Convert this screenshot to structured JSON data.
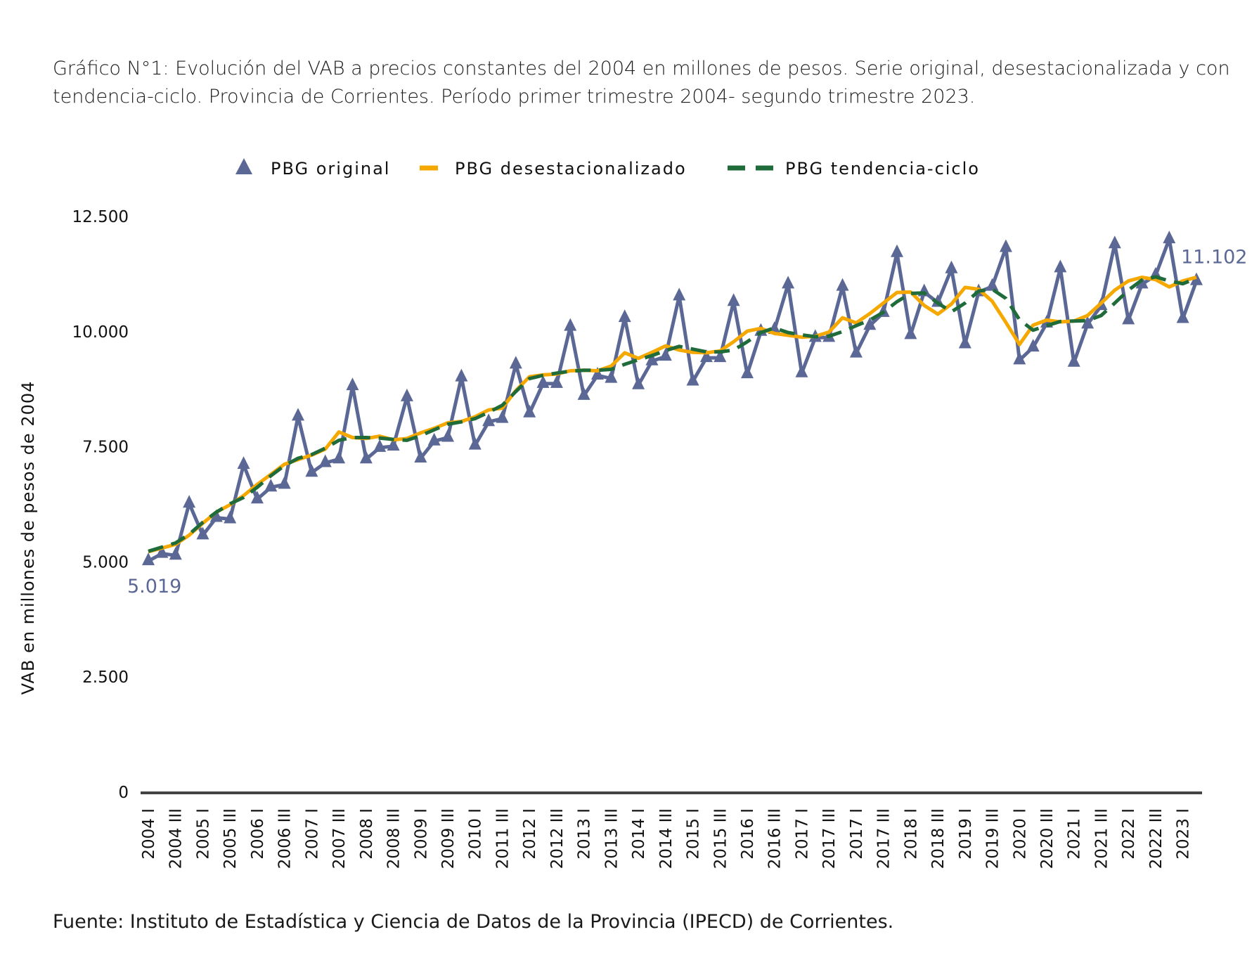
{
  "title": "Gráfico N°1: Evolución del VAB a precios constantes del 2004 en millones de pesos. Serie original, desestacionalizada y con tendencia-ciclo. Provincia de Corrientes. Período primer trimestre 2004- segundo trimestre 2023.",
  "source": "Fuente: Instituto de Estadística y Ciencia de Datos de la Provincia (IPECD) de Corrientes.",
  "chart_data": {
    "type": "line",
    "title": "",
    "xlabel": "",
    "ylabel": "VAB en millones de pesos de 2004",
    "ylim": [
      0,
      12500
    ],
    "y_ticks": [
      0,
      2500,
      5000,
      7500,
      10000,
      12500
    ],
    "y_tick_labels": [
      "0",
      "2.500",
      "5.000",
      "7.500",
      "10.000",
      "12.500"
    ],
    "x_tick_labels": [
      "2004 I",
      "2004 III",
      "2005 I",
      "2005 III",
      "2006 I",
      "2006 III",
      "2007 I",
      "2007 III",
      "2008 I",
      "2008 III",
      "2009 I",
      "2009 III",
      "2010 I",
      "2011 III",
      "2012 I",
      "2012 III",
      "2013 I",
      "2013 III",
      "2014 I",
      "2014 III",
      "2015 I",
      "2015 III",
      "2016 I",
      "2016 III",
      "2017 I",
      "2017 III",
      "2017 I",
      "2017 III",
      "2018 I",
      "2018 III",
      "2019 I",
      "2019 III",
      "2020 I",
      "2020 III",
      "2021 I",
      "2021 III",
      "2022 I",
      "2022 III",
      "2023 I"
    ],
    "grid": false,
    "legend_position": "top",
    "series": [
      {
        "name": "PBG original",
        "color": "#5b6895",
        "marker": "triangle",
        "values": [
          5019,
          5180,
          5140,
          6270,
          5580,
          5960,
          5930,
          7110,
          6360,
          6620,
          6680,
          8160,
          6940,
          7150,
          7230,
          8820,
          7230,
          7480,
          7510,
          8580,
          7250,
          7620,
          7700,
          9010,
          7530,
          8040,
          8110,
          9290,
          8230,
          8870,
          8870,
          10110,
          8610,
          9050,
          8980,
          10300,
          8840,
          9360,
          9460,
          10770,
          8920,
          9430,
          9430,
          10650,
          9080,
          10000,
          10040,
          11030,
          9100,
          9870,
          9870,
          10980,
          9530,
          10130,
          10410,
          11710,
          9930,
          10860,
          10630,
          11360,
          9730,
          10860,
          10980,
          11820,
          9380,
          9660,
          10180,
          11380,
          9330,
          10160,
          10560,
          11900,
          10250,
          11030,
          11220,
          12010,
          10280,
          11102
        ]
      },
      {
        "name": "PBG desestacionalizado",
        "color": "#f5a800",
        "values": [
          5220,
          5300,
          5380,
          5580,
          5840,
          6080,
          6240,
          6440,
          6680,
          6900,
          7120,
          7220,
          7320,
          7450,
          7820,
          7700,
          7680,
          7730,
          7650,
          7680,
          7800,
          7900,
          8020,
          8050,
          8150,
          8300,
          8340,
          8720,
          9020,
          9060,
          9080,
          9150,
          9160,
          9150,
          9250,
          9540,
          9420,
          9550,
          9690,
          9600,
          9550,
          9540,
          9580,
          9780,
          10010,
          10070,
          9960,
          9920,
          9880,
          9900,
          9990,
          10300,
          10190,
          10390,
          10620,
          10850,
          10860,
          10570,
          10380,
          10600,
          10960,
          10920,
          10660,
          10200,
          9720,
          10140,
          10250,
          10210,
          10230,
          10350,
          10620,
          10900,
          11100,
          11180,
          11130,
          10970,
          11100,
          11180
        ]
      },
      {
        "name": "PBG tendencia-ciclo",
        "color": "#1f6b3a",
        "dashed": true,
        "values": [
          5230,
          5320,
          5410,
          5600,
          5860,
          6080,
          6260,
          6400,
          6620,
          6870,
          7090,
          7250,
          7330,
          7470,
          7640,
          7700,
          7700,
          7690,
          7660,
          7640,
          7740,
          7870,
          7990,
          8040,
          8110,
          8250,
          8400,
          8700,
          8980,
          9050,
          9100,
          9140,
          9160,
          9160,
          9180,
          9290,
          9390,
          9480,
          9590,
          9680,
          9620,
          9560,
          9560,
          9600,
          9780,
          9980,
          10080,
          9980,
          9930,
          9890,
          9900,
          10000,
          10130,
          10250,
          10420,
          10650,
          10830,
          10840,
          10620,
          10430,
          10620,
          10880,
          10920,
          10720,
          10260,
          10030,
          10130,
          10220,
          10230,
          10240,
          10350,
          10620,
          10900,
          11120,
          11190,
          11100,
          11040,
          11160
        ]
      }
    ],
    "data_labels": {
      "first": "5.019",
      "last": "11.102"
    }
  }
}
